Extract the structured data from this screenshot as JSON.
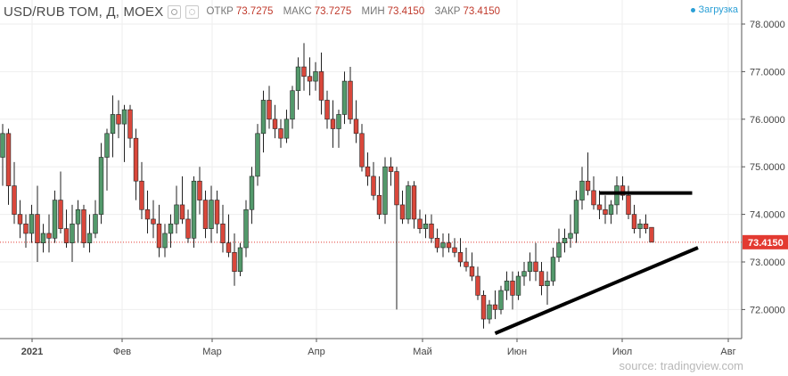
{
  "header": {
    "symbol": "USD/RUB TOM, Д, MOEX",
    "open_label": "ОТКР",
    "open": "73.7275",
    "high_label": "МАКС",
    "high": "73.7275",
    "low_label": "МИН",
    "low": "73.4150",
    "close_label": "ЗАКР",
    "close": "73.4150",
    "status": "Загрузка"
  },
  "source": "source: tradingview.com",
  "colors": {
    "up": "#53996b",
    "down": "#d9473b",
    "last_price": "#e33a31",
    "trendline": "#000000"
  },
  "icons": [
    "eye-icon",
    "gear-icon"
  ],
  "chart_data": {
    "type": "candlestick",
    "x_ticks": [
      "2021",
      "Фев",
      "Мар",
      "Апр",
      "Май",
      "Июн",
      "Июл",
      "Авг"
    ],
    "y_ticks": [
      "72.0000",
      "73.0000",
      "74.0000",
      "75.0000",
      "76.0000",
      "77.0000",
      "78.0000"
    ],
    "y_range": [
      71.2,
      78.2
    ],
    "last_price": "73.4150",
    "series": [
      {
        "candles_ohlc": [
          [
            75.2,
            75.9,
            74.6,
            75.7
          ],
          [
            75.7,
            75.8,
            74.2,
            74.6
          ],
          [
            74.6,
            75.1,
            73.8,
            74.0
          ],
          [
            74.0,
            74.3,
            73.5,
            73.8
          ],
          [
            73.8,
            74.0,
            73.3,
            73.6
          ],
          [
            73.6,
            74.2,
            73.4,
            74.0
          ],
          [
            74.0,
            74.6,
            73.0,
            73.4
          ],
          [
            73.4,
            73.8,
            73.2,
            73.6
          ],
          [
            73.6,
            74.0,
            73.2,
            73.5
          ],
          [
            73.5,
            74.5,
            73.4,
            74.3
          ],
          [
            74.3,
            74.9,
            73.6,
            73.7
          ],
          [
            73.7,
            74.1,
            73.3,
            73.4
          ],
          [
            73.4,
            74.2,
            73.0,
            73.8
          ],
          [
            73.8,
            74.3,
            73.4,
            74.1
          ],
          [
            74.1,
            74.2,
            73.3,
            73.4
          ],
          [
            73.4,
            74.0,
            73.2,
            73.6
          ],
          [
            73.6,
            74.3,
            73.5,
            74.0
          ],
          [
            74.0,
            75.5,
            73.8,
            75.2
          ],
          [
            75.2,
            75.8,
            74.5,
            75.7
          ],
          [
            75.7,
            76.5,
            75.2,
            76.1
          ],
          [
            76.1,
            76.4,
            75.6,
            75.9
          ],
          [
            75.9,
            76.3,
            75.1,
            76.2
          ],
          [
            76.2,
            76.3,
            75.4,
            75.6
          ],
          [
            75.6,
            75.8,
            74.3,
            74.7
          ],
          [
            74.7,
            75.1,
            73.9,
            74.1
          ],
          [
            74.1,
            74.5,
            73.6,
            73.9
          ],
          [
            73.9,
            74.3,
            73.5,
            73.8
          ],
          [
            73.8,
            74.2,
            73.1,
            73.3
          ],
          [
            73.3,
            73.8,
            73.1,
            73.6
          ],
          [
            73.6,
            74.0,
            73.3,
            73.8
          ],
          [
            73.8,
            74.6,
            73.6,
            74.2
          ],
          [
            74.2,
            74.8,
            73.8,
            73.9
          ],
          [
            73.9,
            74.1,
            73.4,
            73.5
          ],
          [
            73.5,
            74.8,
            73.3,
            74.7
          ],
          [
            74.7,
            75.0,
            74.0,
            74.3
          ],
          [
            74.3,
            74.5,
            73.5,
            73.7
          ],
          [
            73.7,
            74.6,
            73.4,
            74.3
          ],
          [
            74.3,
            74.5,
            73.6,
            73.8
          ],
          [
            73.8,
            74.2,
            73.2,
            73.4
          ],
          [
            73.4,
            74.0,
            73.1,
            73.2
          ],
          [
            73.2,
            73.6,
            72.5,
            72.8
          ],
          [
            72.8,
            73.4,
            72.7,
            73.3
          ],
          [
            73.3,
            74.3,
            73.1,
            74.1
          ],
          [
            74.1,
            75.0,
            73.8,
            74.8
          ],
          [
            74.8,
            75.9,
            74.6,
            75.7
          ],
          [
            75.7,
            76.6,
            75.3,
            76.4
          ],
          [
            76.4,
            76.7,
            75.8,
            76.0
          ],
          [
            76.0,
            76.3,
            75.6,
            75.8
          ],
          [
            75.8,
            76.0,
            75.4,
            75.6
          ],
          [
            75.6,
            76.2,
            75.5,
            76.0
          ],
          [
            76.0,
            76.7,
            75.8,
            76.6
          ],
          [
            76.6,
            77.3,
            76.2,
            77.1
          ],
          [
            77.1,
            77.6,
            76.6,
            76.9
          ],
          [
            76.9,
            77.3,
            76.5,
            76.8
          ],
          [
            76.8,
            77.2,
            76.6,
            77.0
          ],
          [
            77.0,
            77.4,
            76.1,
            76.4
          ],
          [
            76.4,
            76.6,
            75.8,
            76.0
          ],
          [
            76.0,
            76.4,
            75.4,
            75.8
          ],
          [
            75.8,
            76.2,
            75.4,
            76.1
          ],
          [
            76.1,
            77.0,
            75.9,
            76.8
          ],
          [
            76.8,
            77.1,
            75.9,
            76.0
          ],
          [
            76.0,
            76.4,
            75.5,
            75.7
          ],
          [
            75.7,
            75.9,
            74.9,
            75.0
          ],
          [
            75.0,
            75.3,
            74.6,
            74.8
          ],
          [
            74.8,
            75.1,
            74.3,
            74.4
          ],
          [
            74.4,
            74.8,
            73.9,
            74.0
          ],
          [
            74.0,
            75.2,
            73.8,
            75.0
          ],
          [
            75.0,
            75.2,
            74.6,
            74.9
          ],
          [
            74.9,
            75.0,
            72.0,
            74.2
          ],
          [
            74.2,
            74.5,
            73.8,
            73.9
          ],
          [
            73.9,
            74.7,
            73.8,
            74.6
          ],
          [
            74.6,
            74.7,
            73.7,
            73.9
          ],
          [
            73.9,
            74.1,
            73.6,
            73.7
          ],
          [
            73.7,
            74.0,
            73.5,
            73.8
          ],
          [
            73.8,
            74.0,
            73.4,
            73.5
          ],
          [
            73.5,
            73.7,
            73.2,
            73.3
          ],
          [
            73.3,
            73.6,
            73.1,
            73.4
          ],
          [
            73.4,
            73.6,
            73.2,
            73.3
          ],
          [
            73.3,
            73.5,
            73.1,
            73.2
          ],
          [
            73.2,
            73.5,
            72.9,
            73.0
          ],
          [
            73.0,
            73.3,
            72.8,
            72.9
          ],
          [
            72.9,
            73.2,
            72.6,
            72.7
          ],
          [
            72.7,
            72.9,
            72.2,
            72.3
          ],
          [
            72.3,
            72.4,
            71.6,
            71.8
          ],
          [
            71.8,
            72.2,
            71.7,
            72.1
          ],
          [
            72.1,
            72.4,
            71.8,
            72.0
          ],
          [
            72.0,
            72.5,
            71.9,
            72.4
          ],
          [
            72.4,
            72.8,
            72.2,
            72.6
          ],
          [
            72.6,
            72.8,
            72.0,
            72.3
          ],
          [
            72.3,
            72.8,
            72.2,
            72.7
          ],
          [
            72.7,
            73.0,
            72.5,
            72.8
          ],
          [
            72.8,
            73.2,
            72.6,
            73.0
          ],
          [
            73.0,
            73.4,
            72.6,
            72.8
          ],
          [
            72.8,
            73.0,
            72.3,
            72.5
          ],
          [
            72.5,
            72.8,
            72.1,
            72.6
          ],
          [
            72.6,
            73.3,
            72.5,
            73.1
          ],
          [
            73.1,
            73.7,
            73.0,
            73.4
          ],
          [
            73.4,
            73.7,
            73.2,
            73.5
          ],
          [
            73.5,
            74.0,
            73.3,
            73.6
          ],
          [
            73.6,
            74.5,
            73.4,
            74.3
          ],
          [
            74.3,
            75.0,
            74.1,
            74.7
          ],
          [
            74.7,
            75.3,
            74.4,
            74.5
          ],
          [
            74.5,
            74.8,
            74.1,
            74.2
          ],
          [
            74.2,
            74.5,
            73.9,
            74.1
          ],
          [
            74.1,
            74.4,
            73.8,
            74.0
          ],
          [
            74.0,
            74.3,
            73.8,
            74.2
          ],
          [
            74.2,
            74.8,
            74.0,
            74.6
          ],
          [
            74.6,
            74.8,
            74.3,
            74.4
          ],
          [
            74.4,
            74.6,
            73.9,
            74.0
          ],
          [
            74.0,
            74.2,
            73.6,
            73.7
          ],
          [
            73.7,
            73.9,
            73.5,
            73.8
          ],
          [
            73.8,
            74.0,
            73.6,
            73.7
          ],
          [
            73.7275,
            73.7275,
            73.415,
            73.415
          ]
        ]
      }
    ],
    "annotations": [
      {
        "type": "horizontal-segment",
        "from_candle": 103,
        "to_candle": 119,
        "price": 74.45
      },
      {
        "type": "trendline",
        "from_candle": 85,
        "from_price": 71.5,
        "to_candle": 120,
        "to_price": 73.3
      }
    ]
  }
}
